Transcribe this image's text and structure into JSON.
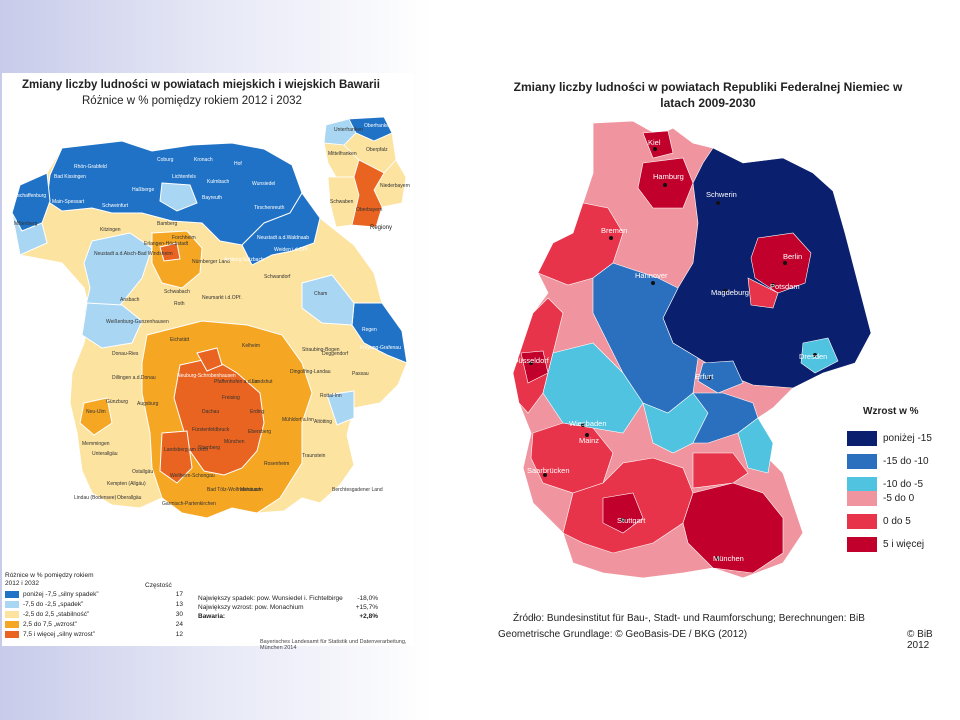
{
  "colors": {
    "dark_navy": "#0a1f6e",
    "mid_blue": "#2b6fbf",
    "cyan": "#4fc3e0",
    "light_pink": "#f0959f",
    "red": "#e8344a",
    "dark_red": "#c2002c",
    "bav_strong_decline": "#1f72c6",
    "bav_decline": "#a9d6f2",
    "bav_stable": "#fde3a0",
    "bav_growth": "#f5a623",
    "bav_strong_growth": "#e86420"
  },
  "left": {
    "title": "Zmiany liczby ludności w powiatach miejskich i wiejskich Bawarii",
    "subtitle": "Różnice w % pomiędzy rokiem 2012 i 2032",
    "inset_label": "Regiony",
    "legend": {
      "heading_1": "Różnice w % pomiędzy rokiem",
      "heading_2": "2012 i 2032",
      "count_heading": "Częstość",
      "rows": [
        {
          "label": "poniżej -7,5  „silny spadek”",
          "count": "17",
          "color": "#1f72c6"
        },
        {
          "label": "-7,5 do -2,5 „spadek”",
          "count": "13",
          "color": "#a9d6f2"
        },
        {
          "label": "-2,5 do 2,5 „stabilność”",
          "count": "30",
          "color": "#fde3a0"
        },
        {
          "label": "2,5 do 7,5 „wzrost”",
          "count": "24",
          "color": "#f5a623"
        },
        {
          "label": "7,5 i więcej „silny wzrost”",
          "count": "12",
          "color": "#e86420"
        }
      ]
    },
    "stats": [
      {
        "label": "Największy spadek: pow. Wunsiedel i. Fichtelbirge",
        "value": "-18,0%"
      },
      {
        "label": "Największy wzrost: pow. Monachium",
        "value": "+15,7%"
      },
      {
        "label": "Bawaria:",
        "value": "+2,8%"
      }
    ],
    "source": "Bayerisches Landesamt für Statistik und Datenverarbeitung, München 2014",
    "places": [
      "Rhön-Grabfeld",
      "Coburg",
      "Kronach",
      "Hof",
      "Bad Kissingen",
      "Lichtenfels",
      "Kulmbach",
      "Wunsiedel",
      "Haßberge",
      "Bayreuth",
      "Tirschenreuth",
      "Aschaffenburg",
      "Main-Spessart",
      "Schweinfurt",
      "Bamberg",
      "Miltenberg",
      "Kitzingen",
      "Forchheim",
      "Neustadt a.d.Waldnaab",
      "Neustadt a.d.Aisch-Bad Windsheim",
      "Erlangen-Höchstadt",
      "Nürnberger Land",
      "Amberg-Sulzbach",
      "Weiden i.d.OPf.",
      "Ansbach",
      "Schwabach",
      "Roth",
      "Neumarkt i.d.OPf.",
      "Schwandorf",
      "Cham",
      "Weißenburg-Gunzenhausen",
      "Eichstätt",
      "Kelheim",
      "Straubing-Bogen",
      "Regen",
      "Freyung-Grafenau",
      "Donau-Ries",
      "Deggendorf",
      "Dillingen a.d.Donau",
      "Pfaffenhofen a.d.Ilm",
      "Landshut",
      "Dingolfing-Landau",
      "Passau",
      "Neu-Ulm",
      "Günzburg",
      "Augsburg",
      "Freising",
      "Erding",
      "Rottal-Inn",
      "Mühldorf a.Inn",
      "Dachau",
      "Altötting",
      "Memmingen",
      "Unterallgäu",
      "Fürstenfeldbruck",
      "Ebersberg",
      "Landsberg am Lech",
      "Starnberg",
      "München",
      "Rosenheim",
      "Traunstein",
      "Ostallgäu",
      "Weilheim-Schongau",
      "Kempten (Allgäu)",
      "Lindau (Bodensee)",
      "Oberallgäu",
      "Bad Tölz-Wolfratshausen",
      "Miesbach",
      "Garmisch-Partenkirchen",
      "Berchtesgadener Land",
      "Neuburg-Schrobenhausen"
    ],
    "regions": [
      "Unterfranken",
      "Oberfranken",
      "Mittelfranken",
      "Oberpfalz",
      "Niederbayern",
      "Schwaben",
      "Oberbayern"
    ]
  },
  "right": {
    "title": "Zmiany liczby ludności w powiatach Republiki Federalnej Niemiec w latach 2009-2030",
    "legend_title": "Wzrost w %",
    "legend": [
      {
        "label": "poniżej -15",
        "color": "#0a1f6e"
      },
      {
        "label": "-15  do  -10",
        "color": "#2b6fbf"
      },
      {
        "label": "-10  do  -5",
        "color": "#4fc3e0"
      },
      {
        "label": "-5  do  0",
        "color": "#f0959f"
      },
      {
        "label": "0  do  5",
        "color": "#e8344a"
      },
      {
        "label": "5 i więcej",
        "color": "#c2002c"
      }
    ],
    "cities": [
      "Kiel",
      "Hamburg",
      "Schwerin",
      "Bremen",
      "Berlin",
      "Hannover",
      "Potsdam",
      "Magdeburg",
      "Düsseldorf",
      "Dresden",
      "Erfurt",
      "Wiesbaden",
      "Mainz",
      "Saarbrücken",
      "Stuttgart",
      "München"
    ],
    "source_1": "Źródło: Bundesinstitut für Bau-, Stadt- und Raumforschung; Berechnungen: BiB",
    "source_2": "Geometrische Grundlage: © GeoBasis-DE / BKG (2012)",
    "copyright": "© BiB 2012"
  }
}
